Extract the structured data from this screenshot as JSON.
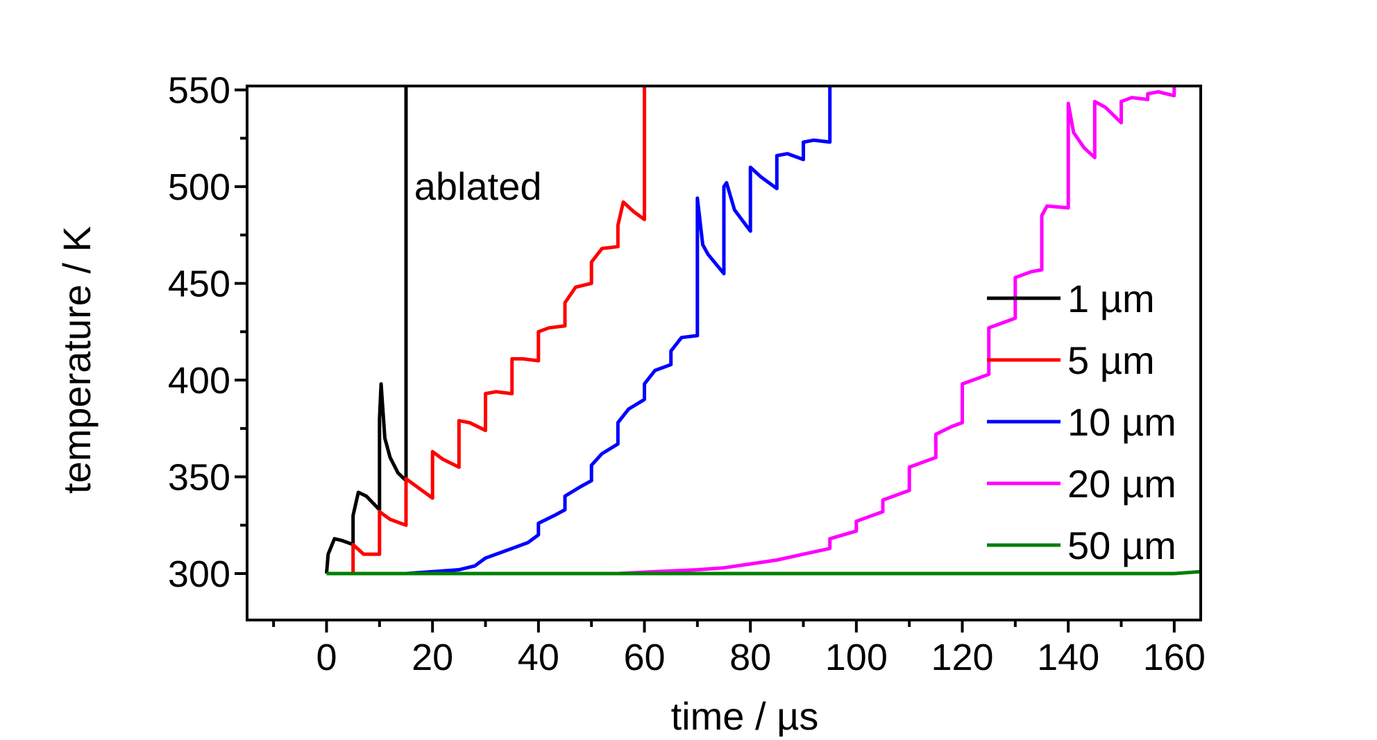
{
  "chart_data": {
    "type": "line",
    "title": "",
    "xlabel": "time / µs",
    "ylabel": "temperature / K",
    "xlim": [
      -15,
      165
    ],
    "ylim": [
      276,
      552
    ],
    "x_ticks": [
      0,
      20,
      40,
      60,
      80,
      100,
      120,
      140,
      160
    ],
    "x_ticks_minor": [
      -10,
      10,
      30,
      50,
      70,
      90,
      110,
      130,
      150
    ],
    "y_ticks": [
      300,
      350,
      400,
      450,
      500,
      550
    ],
    "y_ticks_minor": [
      275,
      325,
      375,
      425,
      475,
      525
    ],
    "grid": false,
    "legend_position": "right",
    "annotations": [
      {
        "text": "ablated",
        "x": 32,
        "y": 500
      }
    ],
    "series": [
      {
        "name": "1 µm",
        "color": "#000000",
        "points": [
          [
            0,
            300
          ],
          [
            0.3,
            310
          ],
          [
            1.5,
            318
          ],
          [
            3,
            317
          ],
          [
            5,
            315
          ],
          [
            5,
            330
          ],
          [
            6,
            342
          ],
          [
            7.5,
            340
          ],
          [
            10,
            333
          ],
          [
            10,
            380
          ],
          [
            10.3,
            398
          ],
          [
            10.5,
            390
          ],
          [
            11,
            370
          ],
          [
            12,
            360
          ],
          [
            13.5,
            352
          ],
          [
            15,
            348
          ],
          [
            15,
            552
          ]
        ]
      },
      {
        "name": "5 µm",
        "color": "#ff0000",
        "points": [
          [
            5,
            300
          ],
          [
            5,
            315
          ],
          [
            7,
            310
          ],
          [
            10,
            310
          ],
          [
            10,
            332
          ],
          [
            12,
            328
          ],
          [
            15,
            325
          ],
          [
            15,
            349
          ],
          [
            17,
            345
          ],
          [
            20,
            339
          ],
          [
            20,
            363
          ],
          [
            22,
            359
          ],
          [
            25,
            355
          ],
          [
            25,
            379
          ],
          [
            27,
            378
          ],
          [
            30,
            374
          ],
          [
            30,
            393
          ],
          [
            32,
            394
          ],
          [
            35,
            393
          ],
          [
            35,
            411
          ],
          [
            37,
            411
          ],
          [
            40,
            410
          ],
          [
            40,
            425
          ],
          [
            42,
            427
          ],
          [
            45,
            428
          ],
          [
            45,
            440
          ],
          [
            47,
            448
          ],
          [
            50,
            450
          ],
          [
            50,
            461
          ],
          [
            52,
            468
          ],
          [
            55,
            469
          ],
          [
            55,
            480
          ],
          [
            56,
            492
          ],
          [
            58,
            487
          ],
          [
            60,
            483
          ],
          [
            60,
            552
          ]
        ]
      },
      {
        "name": "10 µm",
        "color": "#0000ff",
        "points": [
          [
            10,
            300
          ],
          [
            15,
            300
          ],
          [
            20,
            301
          ],
          [
            25,
            302
          ],
          [
            28,
            304
          ],
          [
            30,
            308
          ],
          [
            33,
            311
          ],
          [
            35,
            313
          ],
          [
            38,
            316
          ],
          [
            40,
            320
          ],
          [
            40,
            326
          ],
          [
            43,
            330
          ],
          [
            45,
            333
          ],
          [
            45,
            340
          ],
          [
            48,
            345
          ],
          [
            50,
            348
          ],
          [
            50,
            356
          ],
          [
            52,
            362
          ],
          [
            55,
            367
          ],
          [
            55,
            378
          ],
          [
            57,
            385
          ],
          [
            60,
            390
          ],
          [
            60,
            398
          ],
          [
            62,
            405
          ],
          [
            65,
            408
          ],
          [
            65,
            415
          ],
          [
            67,
            422
          ],
          [
            70,
            423
          ],
          [
            70,
            494
          ],
          [
            71,
            470
          ],
          [
            72,
            465
          ],
          [
            75,
            455
          ],
          [
            75,
            500
          ],
          [
            75.5,
            502
          ],
          [
            77,
            488
          ],
          [
            80,
            477
          ],
          [
            80,
            510
          ],
          [
            82,
            505
          ],
          [
            85,
            499
          ],
          [
            85,
            516
          ],
          [
            87,
            517
          ],
          [
            90,
            514
          ],
          [
            90,
            523
          ],
          [
            92,
            524
          ],
          [
            95,
            523
          ],
          [
            95,
            552
          ]
        ]
      },
      {
        "name": "20 µm",
        "color": "#ff00ff",
        "points": [
          [
            45,
            300
          ],
          [
            55,
            300
          ],
          [
            62,
            301
          ],
          [
            70,
            302
          ],
          [
            75,
            303
          ],
          [
            80,
            305
          ],
          [
            85,
            307
          ],
          [
            90,
            310
          ],
          [
            95,
            313
          ],
          [
            95,
            318
          ],
          [
            100,
            322
          ],
          [
            100,
            327
          ],
          [
            103,
            330
          ],
          [
            105,
            332
          ],
          [
            105,
            338
          ],
          [
            108,
            341
          ],
          [
            110,
            343
          ],
          [
            110,
            355
          ],
          [
            113,
            358
          ],
          [
            115,
            360
          ],
          [
            115,
            372
          ],
          [
            118,
            376
          ],
          [
            120,
            378
          ],
          [
            120,
            398
          ],
          [
            123,
            401
          ],
          [
            125,
            403
          ],
          [
            125,
            427
          ],
          [
            128,
            430
          ],
          [
            130,
            432
          ],
          [
            130,
            453
          ],
          [
            133,
            456
          ],
          [
            135,
            457
          ],
          [
            135,
            485
          ],
          [
            136,
            490
          ],
          [
            140,
            489
          ],
          [
            140,
            543
          ],
          [
            141,
            528
          ],
          [
            143,
            520
          ],
          [
            145,
            515
          ],
          [
            145,
            544
          ],
          [
            147,
            541
          ],
          [
            150,
            533
          ],
          [
            150,
            544
          ],
          [
            152,
            546
          ],
          [
            155,
            545
          ],
          [
            155,
            548
          ],
          [
            157,
            549
          ],
          [
            160,
            547
          ],
          [
            160,
            552
          ]
        ]
      },
      {
        "name": "50 µm",
        "color": "#007f00",
        "points": [
          [
            0,
            300
          ],
          [
            40,
            300
          ],
          [
            80,
            300
          ],
          [
            120,
            300
          ],
          [
            160,
            300
          ],
          [
            165,
            301
          ]
        ]
      }
    ]
  }
}
